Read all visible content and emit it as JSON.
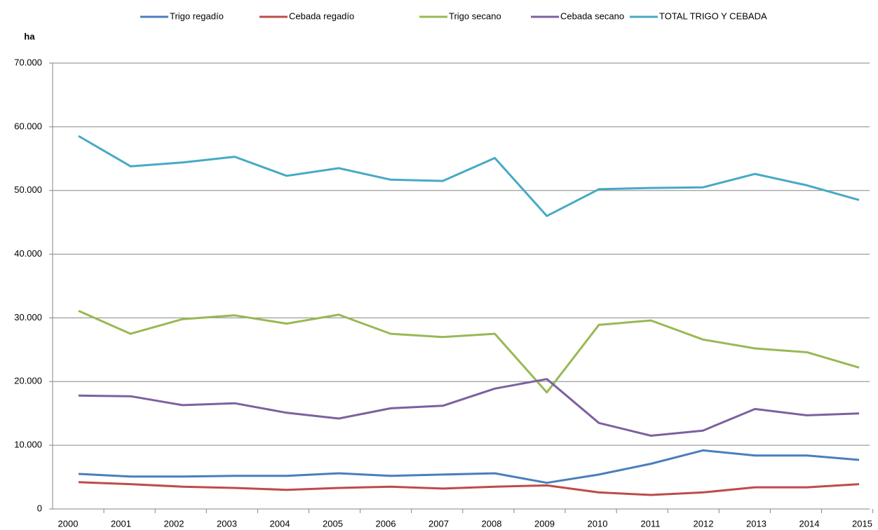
{
  "chart_data": {
    "type": "line",
    "y_label": "ha",
    "categories": [
      "2000",
      "2001",
      "2002",
      "2003",
      "2004",
      "2005",
      "2006",
      "2007",
      "2008",
      "2009",
      "2010",
      "2011",
      "2012",
      "2013",
      "2014",
      "2015"
    ],
    "series": [
      {
        "name": "Trigo regadío",
        "color": "#4a7ebb",
        "values": [
          5500,
          5100,
          5100,
          5200,
          5200,
          5600,
          5200,
          5400,
          5600,
          4100,
          5400,
          7100,
          9200,
          8400,
          8400,
          7700
        ]
      },
      {
        "name": "Cebada regadío",
        "color": "#be4b48",
        "values": [
          4200,
          3900,
          3500,
          3300,
          3000,
          3300,
          3500,
          3200,
          3500,
          3700,
          2600,
          2200,
          2600,
          3400,
          3400,
          3900
        ]
      },
      {
        "name": "Trigo secano",
        "color": "#98b954",
        "values": [
          31100,
          27500,
          29800,
          30400,
          29100,
          30500,
          27500,
          27000,
          27500,
          18300,
          28900,
          29600,
          26600,
          25200,
          24600,
          22200
        ]
      },
      {
        "name": "Cebada secano",
        "color": "#7d60a0",
        "values": [
          17800,
          17700,
          16300,
          16600,
          15100,
          14200,
          15800,
          16200,
          18900,
          20400,
          13500,
          11500,
          12300,
          15700,
          14700,
          15000
        ]
      },
      {
        "name": "TOTAL TRIGO Y CEBADA",
        "color": "#46aac5",
        "values": [
          58550,
          53800,
          54400,
          55300,
          52300,
          53500,
          51700,
          51500,
          55100,
          46000,
          50200,
          50400,
          50500,
          52600,
          50800,
          48500
        ]
      }
    ],
    "ylim": [
      0,
      70000
    ],
    "yticks": [
      0,
      {
        "value": 10000,
        "label": "10.000"
      },
      {
        "value": 20000,
        "label": "20.000"
      },
      {
        "value": 30000,
        "label": "30.000"
      },
      {
        "value": 40000,
        "label": "40.000"
      },
      {
        "value": 50000,
        "label": "50.000"
      },
      {
        "value": 60000,
        "label": "60.000"
      },
      {
        "value": 70000,
        "label": "70.000"
      }
    ],
    "grid": true,
    "legend": "top"
  }
}
